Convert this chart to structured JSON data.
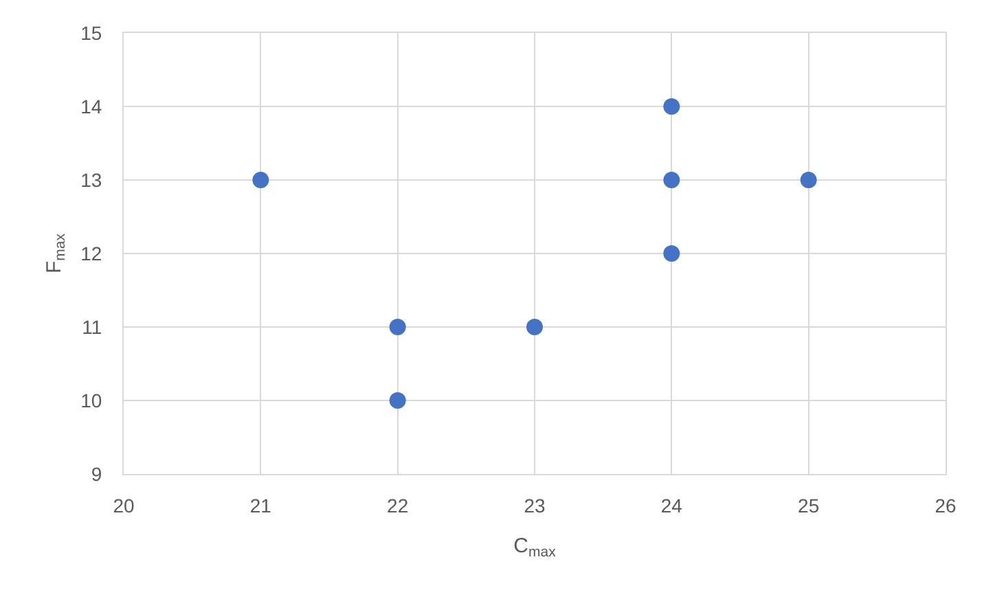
{
  "chart_data": {
    "type": "scatter",
    "xlabel": "C$_{max}$",
    "ylabel": "F$_{max}$",
    "x": [
      21,
      22,
      22,
      23,
      24,
      24,
      24,
      25
    ],
    "series": [
      {
        "color": "#4472c4",
        "values": [
          13,
          11,
          10,
          11,
          14,
          13,
          12,
          13
        ]
      }
    ],
    "xlim": [
      20,
      26
    ],
    "xticks": [
      20,
      21,
      22,
      23,
      24,
      25,
      26
    ],
    "ylim": [
      9,
      15
    ],
    "yticks": [
      9,
      10,
      11,
      12,
      13,
      14,
      15
    ],
    "grid": true,
    "marker": "circle"
  }
}
